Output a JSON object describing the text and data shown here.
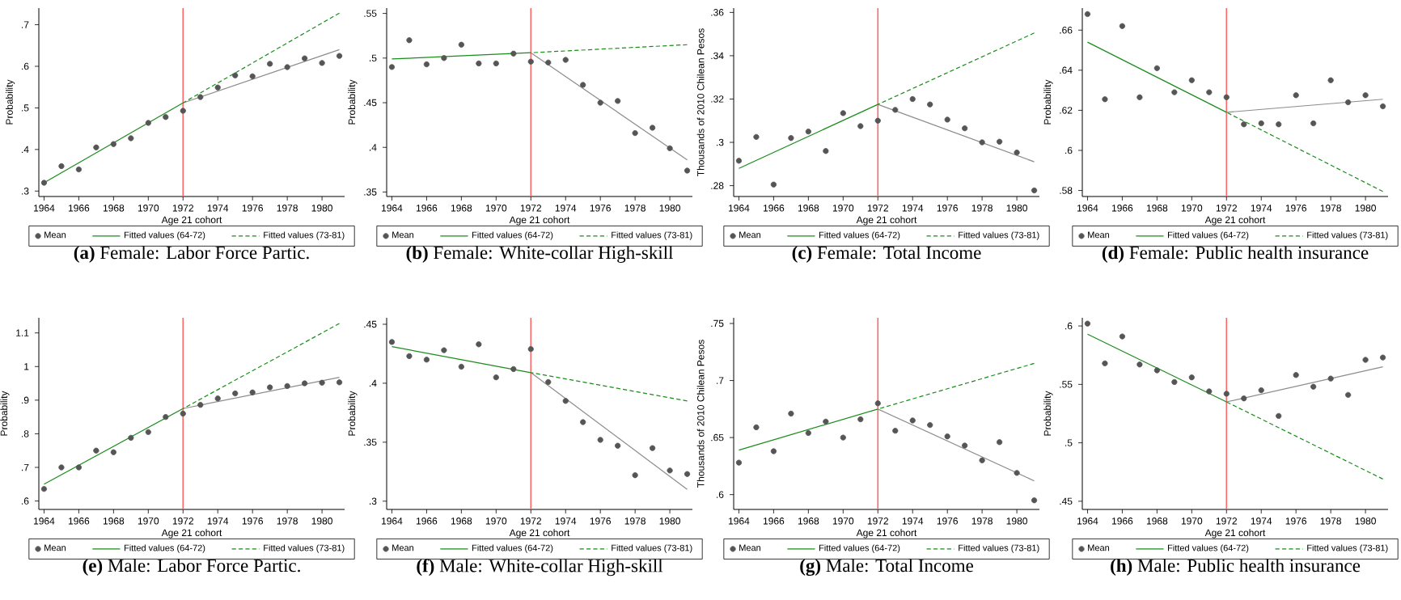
{
  "chart_data": [
    {
      "type": "scatter",
      "title": "**(a)** Female: Labor Force Partic.",
      "xlabel": "Age 21 cohort",
      "ylabel": "Probability",
      "legend": "bottom",
      "xlim": [
        1963.7,
        1981.3
      ],
      "xticks": [
        1964,
        1966,
        1968,
        1970,
        1972,
        1974,
        1976,
        1978,
        1980
      ],
      "ylim": [
        0.287,
        0.74
      ],
      "yticks": [
        {
          "value": 0.3,
          "label": ".3"
        },
        {
          "value": 0.4,
          "label": ".4"
        },
        {
          "value": 0.5,
          "label": ".5"
        },
        {
          "value": 0.6,
          "label": ".6"
        },
        {
          "value": 0.7,
          "label": ".7"
        }
      ],
      "ref_lines": [
        {
          "axis": "x",
          "value": 1972,
          "color": "#ff6666"
        }
      ],
      "series": [
        {
          "name": "Mean",
          "type": "scatter",
          "marker": "circle",
          "color": "#555555",
          "x": [
            1964,
            1965,
            1966,
            1967,
            1968,
            1969,
            1970,
            1971,
            1972,
            1973,
            1974,
            1975,
            1976,
            1977,
            1978,
            1979,
            1980,
            1981
          ],
          "values": [
            0.32,
            0.36,
            0.352,
            0.405,
            0.413,
            0.427,
            0.464,
            0.478,
            0.493,
            0.526,
            0.549,
            0.578,
            0.576,
            0.606,
            0.598,
            0.619,
            0.608,
            0.625
          ]
        },
        {
          "name": "Fitted values (64-72)",
          "type": "line",
          "line_style": "solid",
          "color": "#1a8c1a",
          "x": [
            1964,
            1972
          ],
          "values": [
            0.32,
            0.512
          ]
        },
        {
          "name": "Fitted values (73-81)",
          "type": "line",
          "line_style": "dashed",
          "color": "#1a8c1a",
          "x": [
            1972,
            1981
          ],
          "values": [
            0.512,
            0.728
          ]
        },
        {
          "type": "line",
          "line_style": "solid",
          "color": "#8c8c8c",
          "x": [
            1972,
            1981
          ],
          "values": [
            0.512,
            0.64
          ]
        }
      ]
    },
    {
      "type": "scatter",
      "title": "**(b)** Female: White-collar High-skill",
      "xlabel": "Age 21 cohort",
      "ylabel": "Probability",
      "legend": "bottom",
      "xlim": [
        1963.7,
        1981.3
      ],
      "xticks": [
        1964,
        1966,
        1968,
        1970,
        1972,
        1974,
        1976,
        1978,
        1980
      ],
      "ylim": [
        0.345,
        0.556
      ],
      "yticks": [
        {
          "value": 0.35,
          "label": ".35"
        },
        {
          "value": 0.4,
          "label": ".4"
        },
        {
          "value": 0.45,
          "label": ".45"
        },
        {
          "value": 0.5,
          "label": ".5"
        },
        {
          "value": 0.55,
          "label": ".55"
        }
      ],
      "ref_lines": [
        {
          "axis": "x",
          "value": 1972,
          "color": "#ff6666"
        }
      ],
      "series": [
        {
          "name": "Mean",
          "type": "scatter",
          "marker": "circle",
          "color": "#555555",
          "x": [
            1964,
            1965,
            1966,
            1967,
            1968,
            1969,
            1970,
            1971,
            1972,
            1973,
            1974,
            1975,
            1976,
            1977,
            1978,
            1979,
            1980,
            1981
          ],
          "values": [
            0.49,
            0.52,
            0.493,
            0.5,
            0.515,
            0.494,
            0.494,
            0.505,
            0.496,
            0.495,
            0.498,
            0.47,
            0.45,
            0.452,
            0.416,
            0.422,
            0.399,
            0.374
          ]
        },
        {
          "name": "Fitted values (64-72)",
          "type": "line",
          "line_style": "solid",
          "color": "#1a8c1a",
          "x": [
            1964,
            1972
          ],
          "values": [
            0.499,
            0.506
          ]
        },
        {
          "name": "Fitted values (73-81)",
          "type": "line",
          "line_style": "dashed",
          "color": "#1a8c1a",
          "x": [
            1972,
            1981
          ],
          "values": [
            0.506,
            0.515
          ]
        },
        {
          "type": "line",
          "line_style": "solid",
          "color": "#8c8c8c",
          "x": [
            1972,
            1981
          ],
          "values": [
            0.506,
            0.386
          ]
        }
      ]
    },
    {
      "type": "scatter",
      "title": "**(c)** Female: Total Income",
      "xlabel": "Age 21 cohort",
      "ylabel": "Thousands of 2010 Chilean Pesos",
      "legend": "bottom",
      "xlim": [
        1963.7,
        1981.3
      ],
      "xticks": [
        1964,
        1966,
        1968,
        1970,
        1972,
        1974,
        1976,
        1978,
        1980
      ],
      "ylim": [
        0.275,
        0.362
      ],
      "yticks": [
        {
          "value": 0.28,
          "label": ".28"
        },
        {
          "value": 0.3,
          "label": ".3"
        },
        {
          "value": 0.32,
          "label": ".32"
        },
        {
          "value": 0.34,
          "label": ".34"
        },
        {
          "value": 0.36,
          "label": ".36"
        }
      ],
      "ref_lines": [
        {
          "axis": "x",
          "value": 1972,
          "color": "#ff6666"
        }
      ],
      "series": [
        {
          "name": "Mean",
          "type": "scatter",
          "marker": "circle",
          "color": "#555555",
          "x": [
            1964,
            1965,
            1966,
            1967,
            1968,
            1969,
            1970,
            1971,
            1972,
            1973,
            1974,
            1975,
            1976,
            1977,
            1978,
            1979,
            1980,
            1981
          ],
          "values": [
            0.2915,
            0.3025,
            0.2805,
            0.302,
            0.305,
            0.296,
            0.3135,
            0.3075,
            0.31,
            0.315,
            0.32,
            0.3175,
            0.3105,
            0.3065,
            0.3,
            0.3003,
            0.2953,
            0.2778
          ]
        },
        {
          "name": "Fitted values (64-72)",
          "type": "line",
          "line_style": "solid",
          "color": "#1a8c1a",
          "x": [
            1964,
            1972
          ],
          "values": [
            0.288,
            0.3175
          ]
        },
        {
          "name": "Fitted values (73-81)",
          "type": "line",
          "line_style": "dashed",
          "color": "#1a8c1a",
          "x": [
            1972,
            1981
          ],
          "values": [
            0.3175,
            0.3505
          ]
        },
        {
          "type": "line",
          "line_style": "solid",
          "color": "#8c8c8c",
          "x": [
            1972,
            1981
          ],
          "values": [
            0.3175,
            0.291
          ]
        }
      ]
    },
    {
      "type": "scatter",
      "title": "**(d)** Female: Public health insurance",
      "xlabel": "Age 21 cohort",
      "ylabel": "Probability",
      "legend": "bottom",
      "xlim": [
        1963.7,
        1981.3
      ],
      "xticks": [
        1964,
        1966,
        1968,
        1970,
        1972,
        1974,
        1976,
        1978,
        1980
      ],
      "ylim": [
        0.577,
        0.671
      ],
      "yticks": [
        {
          "value": 0.58,
          "label": ".58"
        },
        {
          "value": 0.6,
          "label": ".6"
        },
        {
          "value": 0.62,
          "label": ".62"
        },
        {
          "value": 0.64,
          "label": ".64"
        },
        {
          "value": 0.66,
          "label": ".66"
        }
      ],
      "ref_lines": [
        {
          "axis": "x",
          "value": 1972,
          "color": "#ff6666"
        }
      ],
      "series": [
        {
          "name": "Mean",
          "type": "scatter",
          "marker": "circle",
          "color": "#555555",
          "x": [
            1964,
            1965,
            1966,
            1967,
            1968,
            1969,
            1970,
            1971,
            1972,
            1973,
            1974,
            1975,
            1976,
            1977,
            1978,
            1979,
            1980,
            1981
          ],
          "values": [
            0.668,
            0.6255,
            0.662,
            0.6265,
            0.641,
            0.629,
            0.635,
            0.629,
            0.6265,
            0.613,
            0.6135,
            0.613,
            0.6275,
            0.6135,
            0.635,
            0.624,
            0.6275,
            0.622
          ]
        },
        {
          "name": "Fitted values (64-72)",
          "type": "line",
          "line_style": "solid",
          "color": "#1a8c1a",
          "x": [
            1964,
            1972
          ],
          "values": [
            0.654,
            0.619
          ]
        },
        {
          "name": "Fitted values (73-81)",
          "type": "line",
          "line_style": "dashed",
          "color": "#1a8c1a",
          "x": [
            1972,
            1981
          ],
          "values": [
            0.619,
            0.5795
          ]
        },
        {
          "type": "line",
          "line_style": "solid",
          "color": "#8c8c8c",
          "x": [
            1972,
            1981
          ],
          "values": [
            0.619,
            0.6255
          ]
        }
      ]
    },
    {
      "type": "scatter",
      "title": "**(e)** Male: Labor Force Partic.",
      "xlabel": "Age 21 cohort",
      "ylabel": "Probability",
      "legend": "bottom",
      "xlim": [
        1963.7,
        1981.3
      ],
      "xticks": [
        1964,
        1966,
        1968,
        1970,
        1972,
        1974,
        1976,
        1978,
        1980
      ],
      "ylim": [
        0.575,
        1.145
      ],
      "yticks": [
        {
          "value": 0.6,
          "label": ".6"
        },
        {
          "value": 0.7,
          "label": ".7"
        },
        {
          "value": 0.8,
          "label": ".8"
        },
        {
          "value": 0.9,
          "label": ".9"
        },
        1,
        1.1
      ],
      "ref_lines": [
        {
          "axis": "x",
          "value": 1972,
          "color": "#ff6666"
        }
      ],
      "series": [
        {
          "name": "Mean",
          "type": "scatter",
          "marker": "circle",
          "color": "#555555",
          "x": [
            1964,
            1965,
            1966,
            1967,
            1968,
            1969,
            1970,
            1971,
            1972,
            1973,
            1974,
            1975,
            1976,
            1977,
            1978,
            1979,
            1980,
            1981
          ],
          "values": [
            0.636,
            0.7,
            0.7,
            0.75,
            0.745,
            0.788,
            0.805,
            0.85,
            0.86,
            0.886,
            0.905,
            0.92,
            0.923,
            0.938,
            0.942,
            0.95,
            0.952,
            0.953
          ]
        },
        {
          "name": "Fitted values (64-72)",
          "type": "line",
          "line_style": "solid",
          "color": "#1a8c1a",
          "x": [
            1964,
            1972
          ],
          "values": [
            0.65,
            0.875
          ]
        },
        {
          "name": "Fitted values (73-81)",
          "type": "line",
          "line_style": "dashed",
          "color": "#1a8c1a",
          "x": [
            1972,
            1981
          ],
          "values": [
            0.875,
            1.128
          ]
        },
        {
          "type": "line",
          "line_style": "solid",
          "color": "#8c8c8c",
          "x": [
            1972,
            1981
          ],
          "values": [
            0.875,
            0.968
          ]
        }
      ]
    },
    {
      "type": "scatter",
      "title": "**(f)** Male: White-collar High-skill",
      "xlabel": "Age 21 cohort",
      "ylabel": "Probability",
      "legend": "bottom",
      "xlim": [
        1963.7,
        1981.3
      ],
      "xticks": [
        1964,
        1966,
        1968,
        1970,
        1972,
        1974,
        1976,
        1978,
        1980
      ],
      "ylim": [
        0.293,
        0.4555
      ],
      "yticks": [
        {
          "value": 0.3,
          "label": ".3"
        },
        {
          "value": 0.35,
          "label": ".35"
        },
        {
          "value": 0.4,
          "label": ".4"
        },
        {
          "value": 0.45,
          "label": ".45"
        }
      ],
      "ref_lines": [
        {
          "axis": "x",
          "value": 1972,
          "color": "#ff6666"
        }
      ],
      "series": [
        {
          "name": "Mean",
          "type": "scatter",
          "marker": "circle",
          "color": "#555555",
          "x": [
            1964,
            1965,
            1966,
            1967,
            1968,
            1969,
            1970,
            1971,
            1972,
            1973,
            1974,
            1975,
            1976,
            1977,
            1978,
            1979,
            1980,
            1981
          ],
          "values": [
            0.435,
            0.423,
            0.42,
            0.428,
            0.414,
            0.433,
            0.405,
            0.412,
            0.429,
            0.401,
            0.385,
            0.367,
            0.352,
            0.347,
            0.322,
            0.345,
            0.326,
            0.323
          ]
        },
        {
          "name": "Fitted values (64-72)",
          "type": "line",
          "line_style": "solid",
          "color": "#1a8c1a",
          "x": [
            1964,
            1972
          ],
          "values": [
            0.431,
            0.409
          ]
        },
        {
          "name": "Fitted values (73-81)",
          "type": "line",
          "line_style": "dashed",
          "color": "#1a8c1a",
          "x": [
            1972,
            1981
          ],
          "values": [
            0.409,
            0.385
          ]
        },
        {
          "type": "line",
          "line_style": "solid",
          "color": "#8c8c8c",
          "x": [
            1972,
            1981
          ],
          "values": [
            0.409,
            0.31
          ]
        }
      ]
    },
    {
      "type": "scatter",
      "title": "**(g)** Male: Total Income",
      "xlabel": "Age 21 cohort",
      "ylabel": "Thousands of 2010 Chilean Pesos",
      "legend": "bottom",
      "xlim": [
        1963.7,
        1981.3
      ],
      "xticks": [
        1964,
        1966,
        1968,
        1970,
        1972,
        1974,
        1976,
        1978,
        1980
      ],
      "ylim": [
        0.587,
        0.755
      ],
      "yticks": [
        {
          "value": 0.6,
          "label": ".6"
        },
        {
          "value": 0.65,
          "label": ".65"
        },
        {
          "value": 0.7,
          "label": ".7"
        },
        {
          "value": 0.75,
          "label": ".75"
        }
      ],
      "ref_lines": [
        {
          "axis": "x",
          "value": 1972,
          "color": "#ff6666"
        }
      ],
      "series": [
        {
          "name": "Mean",
          "type": "scatter",
          "marker": "circle",
          "color": "#555555",
          "x": [
            1964,
            1965,
            1966,
            1967,
            1968,
            1969,
            1970,
            1971,
            1972,
            1973,
            1974,
            1975,
            1976,
            1977,
            1978,
            1979,
            1980,
            1981
          ],
          "values": [
            0.628,
            0.659,
            0.638,
            0.671,
            0.654,
            0.664,
            0.65,
            0.666,
            0.68,
            0.656,
            0.665,
            0.661,
            0.651,
            0.643,
            0.63,
            0.646,
            0.619,
            0.595
          ]
        },
        {
          "name": "Fitted values (64-72)",
          "type": "line",
          "line_style": "solid",
          "color": "#1a8c1a",
          "x": [
            1964,
            1972
          ],
          "values": [
            0.639,
            0.675
          ]
        },
        {
          "name": "Fitted values (73-81)",
          "type": "line",
          "line_style": "dashed",
          "color": "#1a8c1a",
          "x": [
            1972,
            1981
          ],
          "values": [
            0.675,
            0.715
          ]
        },
        {
          "type": "line",
          "line_style": "solid",
          "color": "#8c8c8c",
          "x": [
            1972,
            1981
          ],
          "values": [
            0.675,
            0.612
          ]
        }
      ]
    },
    {
      "type": "scatter",
      "title": "**(h)** Male: Public health insurance",
      "xlabel": "Age 21 cohort",
      "ylabel": "Probability",
      "legend": "bottom",
      "xlim": [
        1963.7,
        1981.3
      ],
      "xticks": [
        1964,
        1966,
        1968,
        1970,
        1972,
        1974,
        1976,
        1978,
        1980
      ],
      "ylim": [
        0.443,
        0.607
      ],
      "yticks": [
        {
          "value": 0.45,
          "label": ".45"
        },
        {
          "value": 0.5,
          "label": ".5"
        },
        {
          "value": 0.55,
          "label": ".55"
        },
        {
          "value": 0.6,
          "label": ".6"
        }
      ],
      "ref_lines": [
        {
          "axis": "x",
          "value": 1972,
          "color": "#ff6666"
        }
      ],
      "series": [
        {
          "name": "Mean",
          "type": "scatter",
          "marker": "circle",
          "color": "#555555",
          "x": [
            1964,
            1965,
            1966,
            1967,
            1968,
            1969,
            1970,
            1971,
            1972,
            1973,
            1974,
            1975,
            1976,
            1977,
            1978,
            1979,
            1980,
            1981
          ],
          "values": [
            0.602,
            0.568,
            0.591,
            0.567,
            0.562,
            0.552,
            0.556,
            0.544,
            0.542,
            0.538,
            0.545,
            0.523,
            0.558,
            0.548,
            0.555,
            0.541,
            0.571,
            0.573
          ]
        },
        {
          "name": "Fitted values (64-72)",
          "type": "line",
          "line_style": "solid",
          "color": "#1a8c1a",
          "x": [
            1964,
            1972
          ],
          "values": [
            0.593,
            0.535
          ]
        },
        {
          "name": "Fitted values (73-81)",
          "type": "line",
          "line_style": "dashed",
          "color": "#1a8c1a",
          "x": [
            1972,
            1981
          ],
          "values": [
            0.535,
            0.469
          ]
        },
        {
          "type": "line",
          "line_style": "solid",
          "color": "#8c8c8c",
          "x": [
            1972,
            1981
          ],
          "values": [
            0.535,
            0.565
          ]
        }
      ]
    }
  ]
}
